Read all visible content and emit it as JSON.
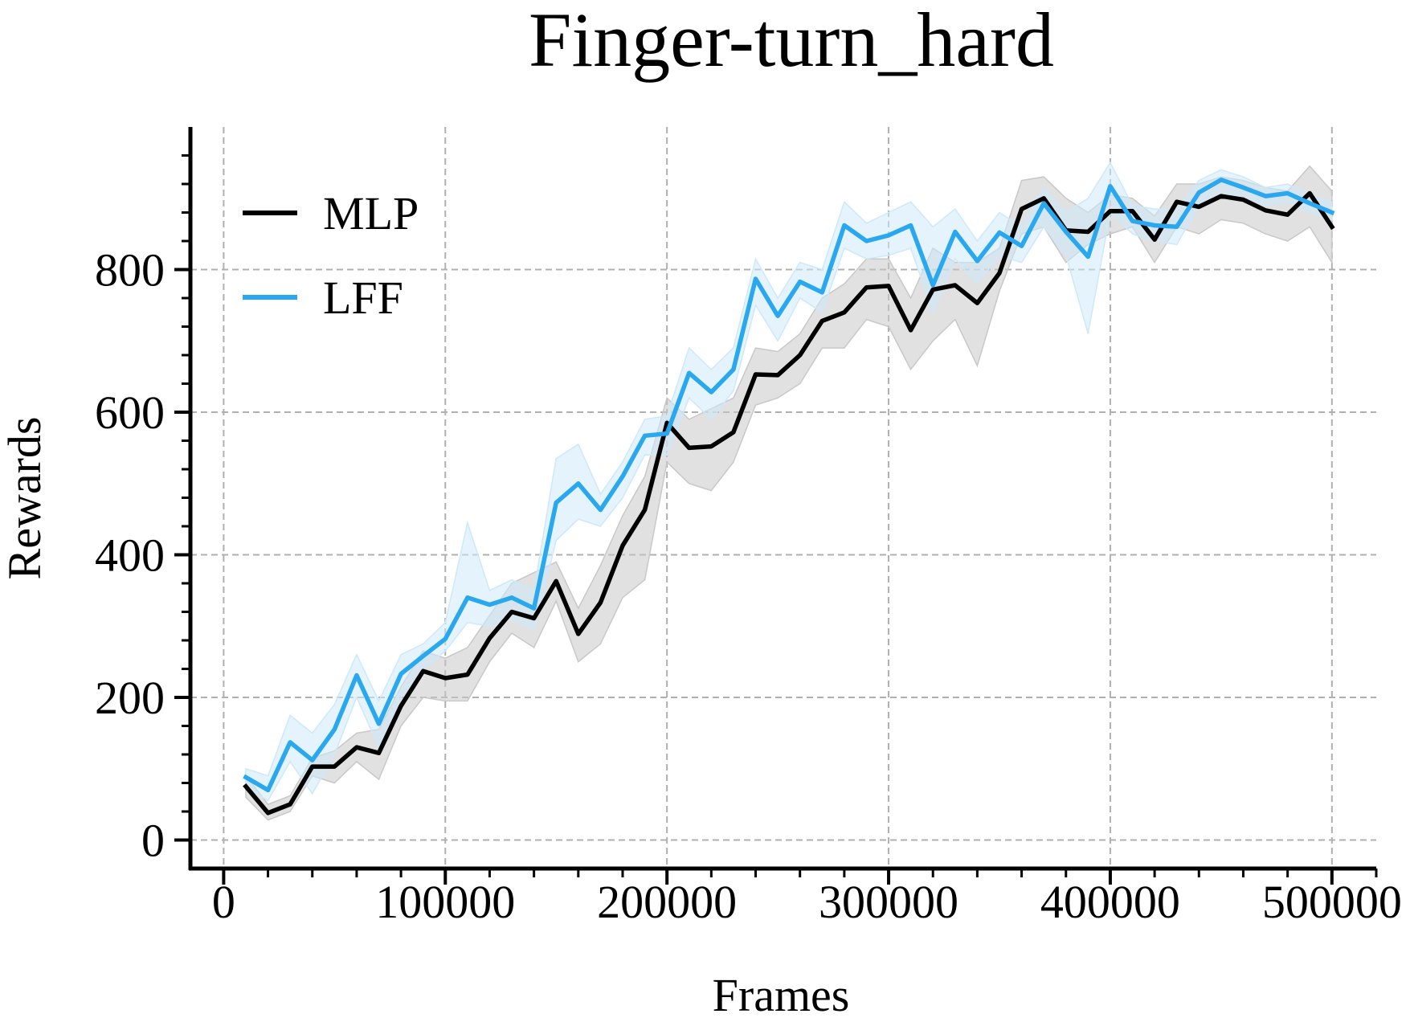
{
  "chart_data": {
    "type": "line",
    "title": "Finger-turn_hard",
    "xlabel": "Frames",
    "ylabel": "Rewards",
    "xlim": [
      -15000,
      520000
    ],
    "ylim": [
      -40,
      1000
    ],
    "xticks": [
      0,
      100000,
      200000,
      300000,
      400000,
      500000
    ],
    "xtick_labels": [
      "0",
      "100000",
      "200000",
      "300000",
      "400000",
      "500000"
    ],
    "yticks": [
      0,
      200,
      400,
      600,
      800
    ],
    "ytick_labels": [
      "0",
      "200",
      "400",
      "600",
      "800"
    ],
    "grid": true,
    "legend_position": "upper-left",
    "x": [
      10000,
      20000,
      30000,
      40000,
      50000,
      60000,
      70000,
      80000,
      90000,
      100000,
      110000,
      120000,
      130000,
      140000,
      150000,
      160000,
      170000,
      180000,
      190000,
      200000,
      210000,
      220000,
      230000,
      240000,
      250000,
      260000,
      270000,
      280000,
      290000,
      300000,
      310000,
      320000,
      330000,
      340000,
      350000,
      360000,
      370000,
      380000,
      390000,
      400000,
      410000,
      420000,
      430000,
      440000,
      450000,
      460000,
      470000,
      480000,
      490000,
      500000
    ],
    "series": [
      {
        "name": "MLP",
        "color": "#000000",
        "band_color": "#c8c8c8",
        "values": [
          75,
          38,
          50,
          103,
          103,
          130,
          122,
          188,
          237,
          227,
          232,
          283,
          320,
          311,
          363,
          289,
          333,
          413,
          463,
          585,
          550,
          552,
          572,
          653,
          652,
          680,
          728,
          740,
          775,
          777,
          715,
          772,
          778,
          753,
          795,
          885,
          900,
          855,
          853,
          882,
          882,
          842,
          895,
          888,
          903,
          898,
          883,
          877,
          907,
          860
        ],
        "lower": [
          60,
          28,
          40,
          90,
          80,
          110,
          85,
          160,
          200,
          195,
          195,
          250,
          290,
          270,
          335,
          250,
          275,
          340,
          365,
          530,
          500,
          490,
          530,
          610,
          620,
          640,
          690,
          690,
          730,
          720,
          660,
          700,
          730,
          665,
          770,
          850,
          860,
          810,
          835,
          850,
          860,
          810,
          860,
          850,
          870,
          865,
          850,
          840,
          860,
          810
        ],
        "upper": [
          90,
          50,
          62,
          115,
          125,
          150,
          155,
          215,
          265,
          255,
          270,
          315,
          360,
          375,
          390,
          325,
          385,
          455,
          510,
          620,
          590,
          605,
          620,
          690,
          685,
          710,
          760,
          780,
          815,
          815,
          760,
          830,
          810,
          810,
          830,
          925,
          930,
          900,
          880,
          905,
          900,
          875,
          920,
          920,
          930,
          925,
          915,
          910,
          945,
          910
        ]
      },
      {
        "name": "LFF",
        "color": "#29a8f0",
        "band_color": "#cde9f9",
        "values": [
          88,
          70,
          137,
          112,
          155,
          231,
          163,
          233,
          258,
          282,
          340,
          330,
          340,
          325,
          473,
          500,
          463,
          510,
          567,
          570,
          655,
          628,
          660,
          787,
          735,
          783,
          768,
          862,
          840,
          848,
          862,
          778,
          853,
          812,
          852,
          833,
          893,
          853,
          818,
          917,
          868,
          862,
          860,
          908,
          926,
          915,
          903,
          907,
          893,
          880
        ],
        "lower": [
          75,
          55,
          110,
          65,
          120,
          200,
          130,
          200,
          240,
          265,
          305,
          300,
          310,
          295,
          420,
          450,
          440,
          480,
          540,
          540,
          620,
          590,
          630,
          750,
          700,
          760,
          740,
          830,
          815,
          820,
          830,
          740,
          815,
          780,
          820,
          810,
          860,
          820,
          710,
          880,
          850,
          840,
          835,
          890,
          910,
          900,
          890,
          895,
          880,
          870
        ],
        "upper": [
          100,
          90,
          175,
          150,
          190,
          260,
          195,
          260,
          275,
          305,
          445,
          350,
          365,
          350,
          535,
          555,
          485,
          530,
          590,
          595,
          690,
          660,
          690,
          815,
          760,
          810,
          800,
          895,
          865,
          880,
          895,
          860,
          885,
          840,
          880,
          860,
          915,
          880,
          900,
          950,
          890,
          885,
          885,
          925,
          940,
          930,
          915,
          920,
          905,
          895
        ]
      }
    ]
  }
}
